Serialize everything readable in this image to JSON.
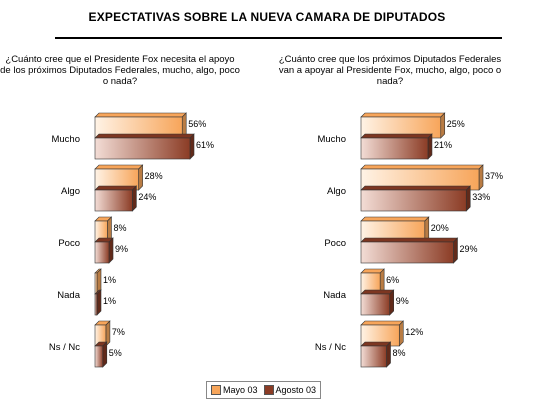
{
  "title": "EXPECTATIVAS SOBRE LA NUEVA CAMARA DE DIPUTADOS",
  "colors": {
    "mayo": "#f7a55a",
    "agosto": "#8b3c25",
    "mayo_light": "#fff3e6",
    "agosto_light": "#f3ddd6"
  },
  "legend": [
    {
      "label": "Mayo 03"
    },
    {
      "label": "Agosto 03"
    }
  ],
  "chart_data": [
    {
      "type": "bar",
      "orientation": "horizontal",
      "title": "¿Cuánto cree que el Presidente Fox necesita el apoyo de los próximos Diputados Federales, mucho, algo, poco o nada?",
      "categories": [
        "Mucho",
        "Algo",
        "Poco",
        "Nada",
        "Ns / Nc"
      ],
      "series": [
        {
          "name": "Mayo 03",
          "values": [
            56,
            28,
            8,
            1,
            7
          ],
          "labels": [
            "56%",
            "28%",
            "8%",
            "1%",
            "7%"
          ]
        },
        {
          "name": "Agosto 03",
          "values": [
            61,
            24,
            9,
            1,
            5
          ],
          "labels": [
            "61%",
            "24%",
            "9%",
            "1%",
            "5%"
          ]
        }
      ],
      "xlim": [
        0,
        61
      ],
      "grid": false,
      "legend_position": "bottom"
    },
    {
      "type": "bar",
      "orientation": "horizontal",
      "title": "¿Cuánto cree que los próximos Diputados Federales van a apoyar al Presidente Fox, mucho, algo, poco o nada?",
      "categories": [
        "Mucho",
        "Algo",
        "Poco",
        "Nada",
        "Ns / Nc"
      ],
      "series": [
        {
          "name": "Mayo 03",
          "values": [
            25,
            37,
            20,
            6,
            12
          ],
          "labels": [
            "25%",
            "37%",
            "20%",
            "6%",
            "12%"
          ]
        },
        {
          "name": "Agosto 03",
          "values": [
            21,
            33,
            29,
            9,
            8
          ],
          "labels": [
            "21%",
            "33%",
            "29%",
            "9%",
            "8%"
          ]
        }
      ],
      "xlim": [
        0,
        37
      ],
      "grid": false,
      "legend_position": "bottom"
    }
  ]
}
